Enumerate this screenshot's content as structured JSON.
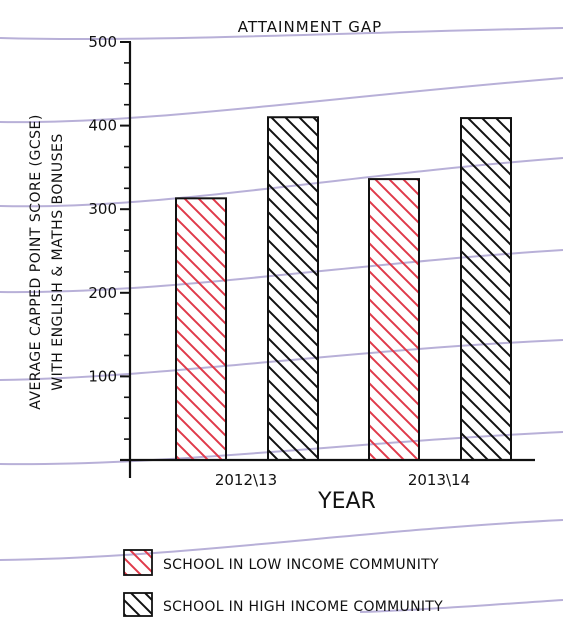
{
  "chart_data": {
    "type": "bar",
    "title": "ATTAINMENT GAP",
    "xlabel": "YEAR",
    "ylabel_line1": "AVERAGE CAPPED POINT SCORE (GCSE)",
    "ylabel_line2": "WITH ENGLISH & MATHS BONUSES",
    "categories": [
      "2012\\13",
      "2013\\14"
    ],
    "ylim": [
      0,
      500
    ],
    "yticks": [
      "100",
      "200",
      "300",
      "400",
      "500"
    ],
    "series": [
      {
        "name": "SCHOOL IN LOW INCOME COMMUNITY",
        "values": [
          313,
          336
        ],
        "color": "#e03a4a"
      },
      {
        "name": "SCHOOL IN HIGH INCOME COMMUNITY",
        "values": [
          410,
          409
        ],
        "color": "#111111"
      }
    ],
    "grid": false,
    "legend_position": "bottom",
    "paper_line_color": "#b8b0d8"
  }
}
